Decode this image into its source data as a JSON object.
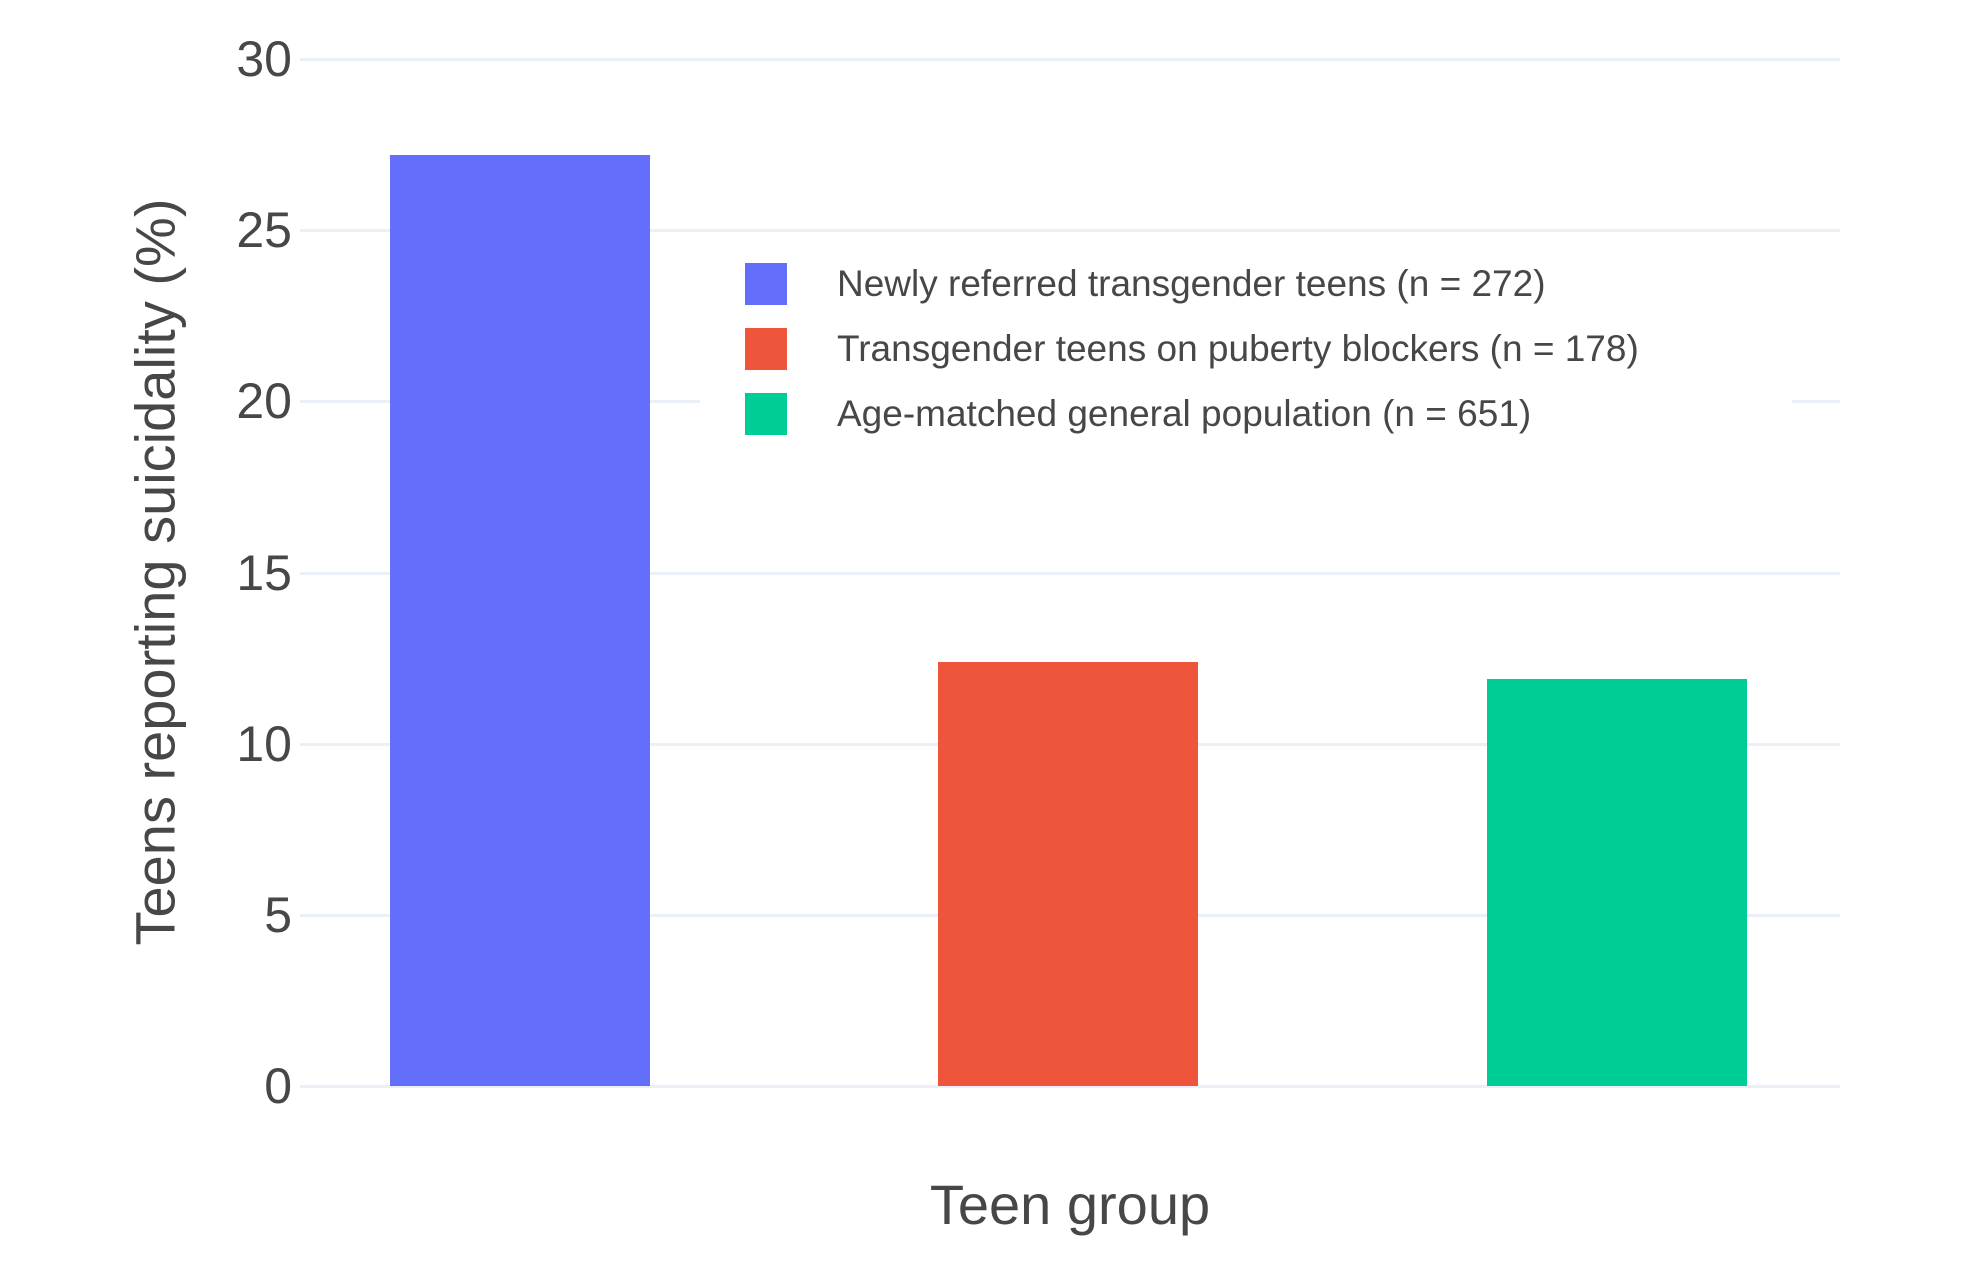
{
  "chart_data": {
    "type": "bar",
    "title": "",
    "xlabel": "Teen group",
    "ylabel": "Teens reporting suicidality (%)",
    "ylim": [
      0,
      30
    ],
    "yticks": [
      30,
      25,
      20,
      15,
      10,
      5,
      0
    ],
    "grid": true,
    "legend_position": "inside-top-right",
    "background_color": "#ffffff",
    "gridline_color": "#EBF0F8",
    "text_color": "#474747",
    "series": [
      {
        "name": "Newly referred transgender teens (n = 272)",
        "value": 27.2,
        "color": "#636EFA"
      },
      {
        "name": "Transgender teens on puberty blockers (n = 178)",
        "value": 12.4,
        "color": "#EF553B"
      },
      {
        "name": "Age-matched general population (n = 651)",
        "value": 11.9,
        "color": "#00CC96"
      }
    ]
  }
}
